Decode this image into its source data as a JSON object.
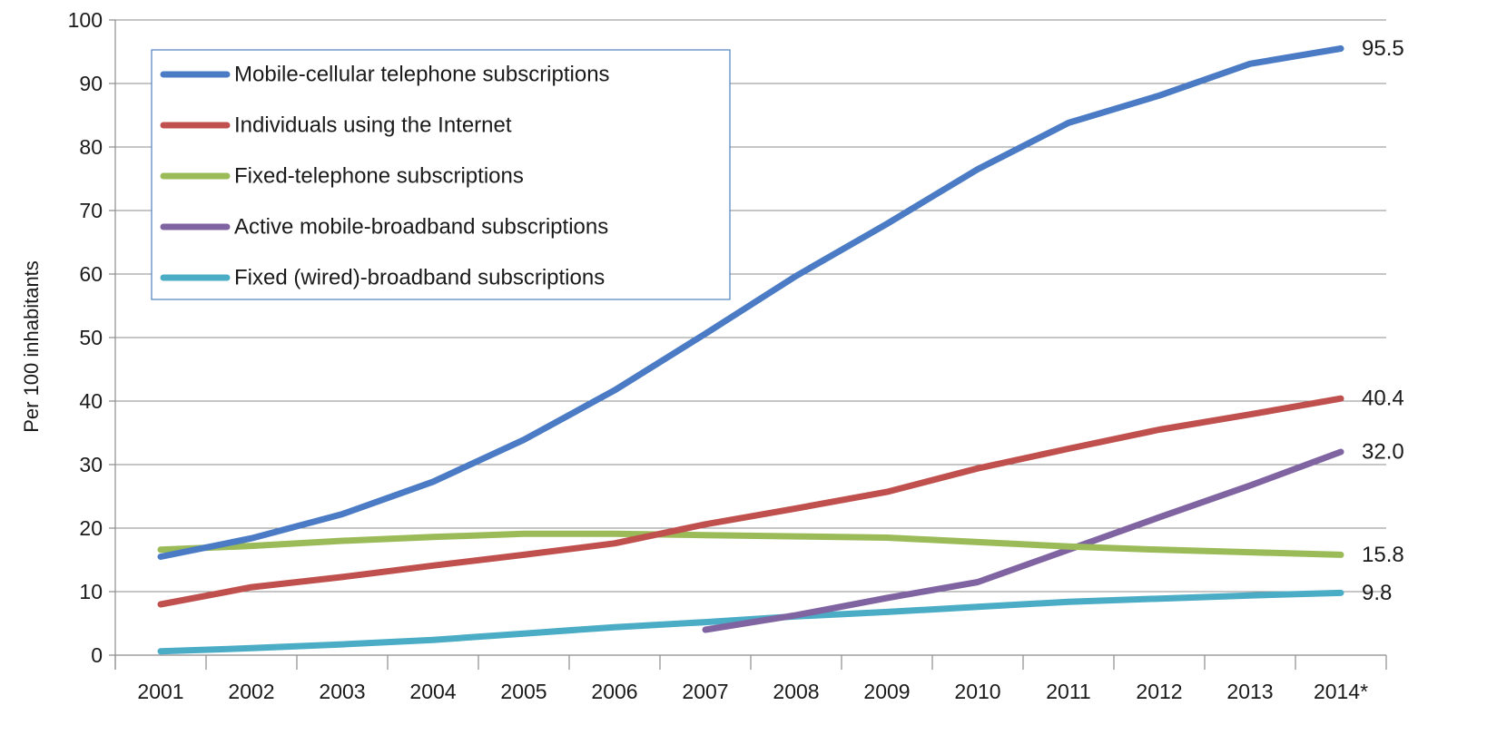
{
  "chart_data": {
    "type": "line",
    "categories": [
      "2001",
      "2002",
      "2003",
      "2004",
      "2005",
      "2006",
      "2007",
      "2008",
      "2009",
      "2010",
      "2011",
      "2012",
      "2013",
      "2014*"
    ],
    "ylabel": "Per 100 inhabitants",
    "xlabel": "",
    "ylim": [
      0,
      100
    ],
    "yticks": [
      0,
      10,
      20,
      30,
      40,
      50,
      60,
      70,
      80,
      90,
      100
    ],
    "grid": "horizontal",
    "legend_position": "top-left",
    "series": [
      {
        "name": "Mobile-cellular telephone subscriptions",
        "color": "#4a7bc4",
        "values": [
          15.5,
          18.4,
          22.2,
          27.3,
          33.9,
          41.7,
          50.6,
          59.7,
          67.9,
          76.5,
          83.8,
          88.1,
          93.1,
          95.5
        ],
        "end_label": "95.5"
      },
      {
        "name": "Individuals using the Internet",
        "color": "#c0504d",
        "values": [
          8.0,
          10.7,
          12.3,
          14.1,
          15.8,
          17.6,
          20.6,
          23.1,
          25.7,
          29.4,
          32.5,
          35.5,
          37.9,
          40.4
        ],
        "end_label": "40.4"
      },
      {
        "name": "Fixed-telephone subscriptions",
        "color": "#9bbb59",
        "values": [
          16.6,
          17.2,
          18.0,
          18.6,
          19.1,
          19.1,
          18.9,
          18.7,
          18.5,
          17.8,
          17.1,
          16.6,
          16.2,
          15.8
        ],
        "end_label": "15.8"
      },
      {
        "name": "Active mobile-broadband subscriptions",
        "color": "#8064a2",
        "values": [
          null,
          null,
          null,
          null,
          null,
          null,
          4.0,
          6.3,
          9.0,
          11.5,
          16.6,
          21.7,
          26.7,
          32.0
        ],
        "end_label": "32.0"
      },
      {
        "name": "Fixed (wired)-broadband subscriptions",
        "color": "#4bacc6",
        "values": [
          0.6,
          1.1,
          1.7,
          2.4,
          3.4,
          4.4,
          5.2,
          6.1,
          6.8,
          7.6,
          8.4,
          8.9,
          9.4,
          9.8
        ],
        "end_label": "9.8"
      }
    ]
  }
}
